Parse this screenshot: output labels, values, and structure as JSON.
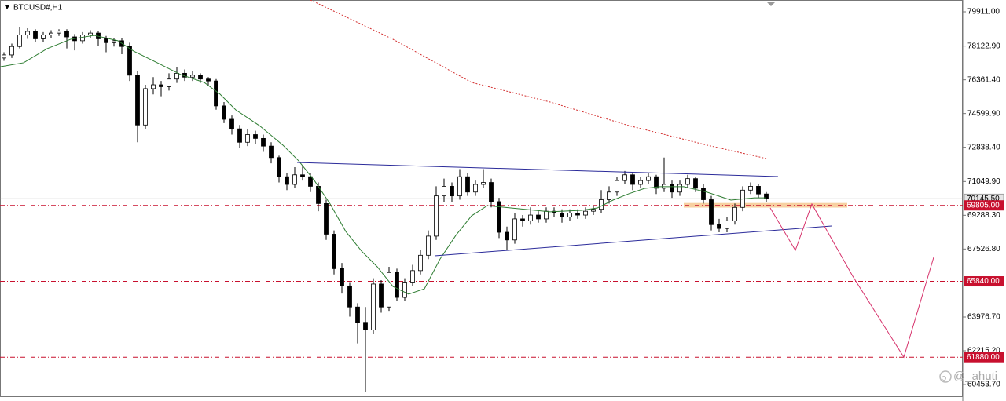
{
  "chart_data": {
    "type": "candlestick",
    "title": "BTCUSD#,H1",
    "watermark": "@_ahuti",
    "up_color": "#ffffff",
    "down_color": "#000000",
    "wick_color": "#000000",
    "xlim": [
      -0.5,
      122
    ],
    "ylim": [
      59840,
      80525
    ],
    "yticks": [
      {
        "value": 79911,
        "label": "79911.00"
      },
      {
        "value": 78122.9,
        "label": "78122.90"
      },
      {
        "value": 76361.4,
        "label": "76361.40"
      },
      {
        "value": 74599.9,
        "label": "74599.90"
      },
      {
        "value": 72838.4,
        "label": "72838.40"
      },
      {
        "value": 71049.9,
        "label": "71049.90"
      },
      {
        "value": 69288.3,
        "label": "69288.30"
      },
      {
        "value": 67526.8,
        "label": "67526.80"
      },
      {
        "value": 63976.7,
        "label": "63976.70"
      },
      {
        "value": 62215.2,
        "label": "62215.20"
      },
      {
        "value": 60453.7,
        "label": "60453.70"
      }
    ],
    "levels": [
      {
        "value": 70145.5,
        "label": "70145.50",
        "color": "#a0a0a0",
        "style": "solid"
      },
      {
        "value": 69805,
        "label": "69805.00",
        "color": "#c8102e",
        "style": "dashdot"
      },
      {
        "value": 65840,
        "label": "65840.00",
        "color": "#c8102e",
        "style": "dashdot"
      },
      {
        "value": 61880,
        "label": "61880.00",
        "color": "#c8102e",
        "style": "dashdot"
      }
    ],
    "ohlc": [
      [
        77500,
        77800,
        77350,
        77660
      ],
      [
        77660,
        78250,
        77500,
        78100
      ],
      [
        78100,
        79100,
        78000,
        78700
      ],
      [
        78700,
        79050,
        78500,
        78890
      ],
      [
        78890,
        79000,
        78350,
        78500
      ],
      [
        78500,
        78850,
        78350,
        78700
      ],
      [
        78700,
        78950,
        78550,
        78800
      ],
      [
        78800,
        79000,
        78650,
        78900
      ],
      [
        78900,
        79000,
        78000,
        78600
      ],
      [
        78600,
        78750,
        77900,
        78400
      ],
      [
        78400,
        78850,
        78250,
        78700
      ],
      [
        78700,
        78950,
        78550,
        78800
      ],
      [
        78800,
        78900,
        78150,
        78500
      ],
      [
        78500,
        78650,
        77800,
        78300
      ],
      [
        78300,
        78550,
        78100,
        78400
      ],
      [
        78400,
        78550,
        77700,
        78100
      ],
      [
        78100,
        78300,
        76300,
        76600
      ],
      [
        76600,
        76800,
        73100,
        74000
      ],
      [
        74000,
        76100,
        73800,
        75900
      ],
      [
        75900,
        76500,
        75600,
        76100
      ],
      [
        76100,
        76300,
        75500,
        76000
      ],
      [
        76000,
        76700,
        75800,
        76400
      ],
      [
        76400,
        77000,
        76200,
        76700
      ],
      [
        76700,
        76900,
        76300,
        76500
      ],
      [
        76500,
        76800,
        76300,
        76600
      ],
      [
        76600,
        76700,
        76200,
        76400
      ],
      [
        76400,
        76500,
        76050,
        76300
      ],
      [
        76300,
        76400,
        74800,
        75000
      ],
      [
        75000,
        75200,
        74100,
        74300
      ],
      [
        74300,
        74500,
        73500,
        73800
      ],
      [
        73800,
        74000,
        72800,
        73100
      ],
      [
        73100,
        73800,
        72900,
        73500
      ],
      [
        73500,
        73700,
        73000,
        73300
      ],
      [
        73300,
        73500,
        72600,
        72900
      ],
      [
        72900,
        73100,
        72000,
        72300
      ],
      [
        72300,
        72400,
        71000,
        71300
      ],
      [
        71300,
        71500,
        70600,
        70900
      ],
      [
        70900,
        71800,
        70700,
        71400
      ],
      [
        71400,
        71900,
        71100,
        71300
      ],
      [
        71300,
        71500,
        70500,
        70800
      ],
      [
        70800,
        71000,
        69500,
        69900
      ],
      [
        69900,
        70100,
        68000,
        68300
      ],
      [
        68300,
        68500,
        66200,
        66500
      ],
      [
        66500,
        66800,
        65200,
        65600
      ],
      [
        65600,
        65800,
        64000,
        64500
      ],
      [
        64500,
        64700,
        62600,
        63700
      ],
      [
        63700,
        64500,
        60050,
        63300
      ],
      [
        63300,
        66000,
        63100,
        65700
      ],
      [
        65700,
        65900,
        64200,
        64500
      ],
      [
        64500,
        66600,
        64300,
        66300
      ],
      [
        66300,
        66500,
        64800,
        65000
      ],
      [
        65000,
        66000,
        64800,
        65800
      ],
      [
        65800,
        66700,
        65600,
        66400
      ],
      [
        66400,
        67500,
        66200,
        67200
      ],
      [
        67200,
        68500,
        67000,
        68200
      ],
      [
        68200,
        70800,
        68000,
        70300
      ],
      [
        70300,
        71200,
        70000,
        70800
      ],
      [
        70800,
        71000,
        70000,
        70300
      ],
      [
        70300,
        71700,
        70100,
        71300
      ],
      [
        71300,
        71500,
        70300,
        70500
      ],
      [
        70500,
        71100,
        70300,
        70900
      ],
      [
        70900,
        71700,
        70700,
        71000
      ],
      [
        71000,
        71200,
        69700,
        70000
      ],
      [
        70000,
        70200,
        68100,
        68400
      ],
      [
        68400,
        68700,
        67500,
        68000
      ],
      [
        68000,
        69400,
        67800,
        69100
      ],
      [
        69100,
        69300,
        68700,
        69000
      ],
      [
        69000,
        69700,
        68800,
        69300
      ],
      [
        69300,
        69500,
        68900,
        69100
      ],
      [
        69100,
        69700,
        68900,
        69500
      ],
      [
        69500,
        69700,
        69200,
        69400
      ],
      [
        69400,
        69600,
        68900,
        69200
      ],
      [
        69200,
        69600,
        69000,
        69400
      ],
      [
        69400,
        69600,
        69100,
        69300
      ],
      [
        69300,
        69700,
        69100,
        69500
      ],
      [
        69500,
        69800,
        69300,
        69600
      ],
      [
        69600,
        70600,
        69400,
        70100
      ],
      [
        70100,
        70800,
        69900,
        70500
      ],
      [
        70500,
        71300,
        70300,
        71100
      ],
      [
        71100,
        71600,
        70900,
        71400
      ],
      [
        71400,
        71500,
        70600,
        70900
      ],
      [
        70900,
        71300,
        70700,
        71100
      ],
      [
        71100,
        71500,
        70900,
        71300
      ],
      [
        71300,
        71400,
        70400,
        70700
      ],
      [
        70700,
        72300,
        70500,
        70900
      ],
      [
        70900,
        71100,
        70200,
        70500
      ],
      [
        70500,
        71100,
        70300,
        70900
      ],
      [
        70900,
        71400,
        70700,
        71200
      ],
      [
        71200,
        71300,
        70500,
        70700
      ],
      [
        70700,
        70900,
        69900,
        70100
      ],
      [
        70100,
        70300,
        68500,
        68800
      ],
      [
        68800,
        69100,
        68400,
        68600
      ],
      [
        68600,
        69200,
        68400,
        69000
      ],
      [
        69000,
        69900,
        68800,
        69700
      ],
      [
        69700,
        70800,
        69500,
        70600
      ],
      [
        70600,
        71000,
        70400,
        70800
      ],
      [
        70800,
        70900,
        70200,
        70400
      ],
      [
        70400,
        70500,
        70000,
        70145.5
      ]
    ],
    "overlays": [
      {
        "color": "#2e7d32",
        "style": "solid",
        "x": [
          -0.5,
          2.5,
          5.5,
          8.5,
          11.5,
          14.5,
          16.5,
          19.5,
          22.5,
          25.5,
          27.5,
          29.5,
          32.5,
          35.5,
          37.5,
          39.5,
          41.5,
          43.5,
          45.5,
          47.5,
          49.5,
          51.5,
          53.5,
          55.5,
          57.5,
          59.5,
          61.5,
          64.5,
          69.5,
          73.5,
          75.5,
          77.5,
          79.5,
          81.5,
          83.5,
          86.5,
          89.5,
          92.5,
          95.5,
          97
        ],
        "values": [
          77040,
          77250,
          77990,
          78480,
          78680,
          78400,
          77860,
          77250,
          76630,
          76220,
          75610,
          74790,
          73970,
          72950,
          72130,
          71100,
          69880,
          68440,
          67420,
          66600,
          65570,
          65170,
          65450,
          67010,
          68240,
          69260,
          69790,
          69670,
          69470,
          69550,
          69670,
          70080,
          70410,
          70690,
          70780,
          70780,
          70490,
          70080,
          70200,
          70200
        ]
      },
      {
        "color": "#d32f2f",
        "style": "dotted",
        "x": [
          39,
          49.5,
          59.5,
          69.5,
          79.5,
          89.5,
          97
        ],
        "values": [
          80525,
          78477,
          76224,
          75200,
          73971,
          72947,
          72251
        ]
      },
      {
        "color": "#2b2b9a",
        "style": "solid",
        "x": [
          37.3,
          98.5
        ],
        "values": [
          72046,
          71309
        ]
      },
      {
        "color": "#2b2b9a",
        "style": "solid",
        "x": [
          54.8,
          105.3
        ],
        "values": [
          67172,
          68729
        ]
      },
      {
        "color": "#d6336c",
        "style": "solid",
        "x": [
          97.5,
          100.7,
          102.8,
          108,
          114.5,
          118.3
        ],
        "values": [
          69670,
          67459,
          69876,
          66107,
          61880,
          67090
        ]
      }
    ],
    "zone": {
      "color": "#f5c48a",
      "xlim": [
        86.5,
        107.3
      ],
      "ylim": [
        69690,
        69930
      ]
    }
  }
}
